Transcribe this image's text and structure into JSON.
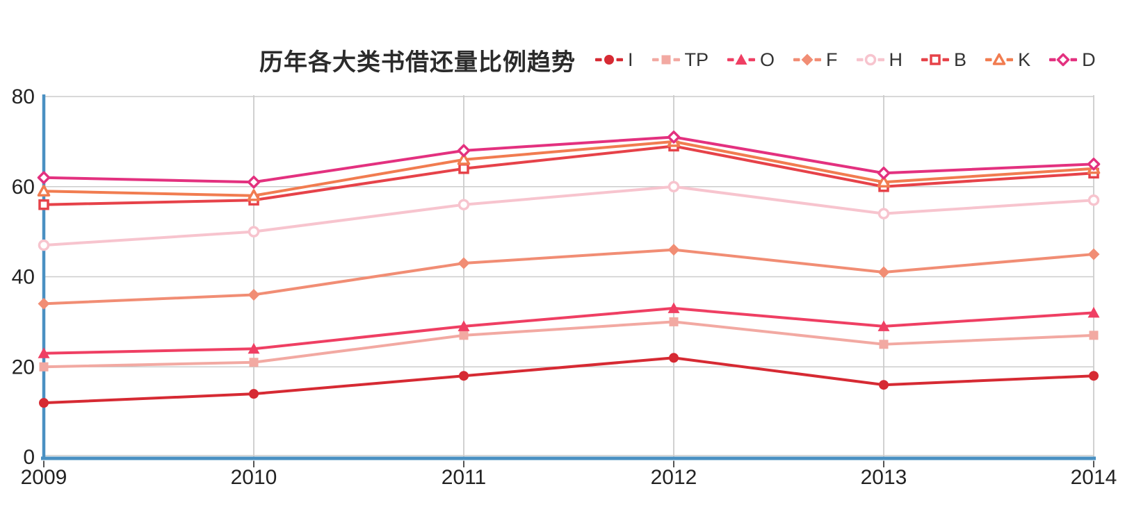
{
  "title": "历年各大类书借还量比例趋势",
  "colors": {
    "axis_blue": "#4a90c2",
    "gridline": "#cccccc",
    "tick": "#555555",
    "label_text": "#222222",
    "title_text": "#2b2b2b"
  },
  "chart_data": {
    "type": "line",
    "title": "历年各大类书借还量比例趋势",
    "x": [
      "2009",
      "2010",
      "2011",
      "2012",
      "2013",
      "2014"
    ],
    "ylim": [
      0,
      80
    ],
    "yticks": [
      0,
      20,
      40,
      60,
      80
    ],
    "grid": true,
    "legend_position": "top-right-of-title",
    "series": [
      {
        "name": "I",
        "color": "#d62a33",
        "marker": "circle",
        "marker_fill": "solid",
        "values": [
          12,
          14,
          18,
          22,
          16,
          18
        ]
      },
      {
        "name": "TP",
        "color": "#f2a9a2",
        "marker": "square",
        "marker_fill": "solid",
        "values": [
          20,
          21,
          27,
          30,
          25,
          27
        ]
      },
      {
        "name": "O",
        "color": "#ef3f63",
        "marker": "triangle",
        "marker_fill": "solid",
        "values": [
          23,
          24,
          29,
          33,
          29,
          32
        ]
      },
      {
        "name": "F",
        "color": "#f18d74",
        "marker": "diamond",
        "marker_fill": "solid",
        "values": [
          34,
          36,
          43,
          46,
          41,
          45
        ]
      },
      {
        "name": "H",
        "color": "#f7c4ce",
        "marker": "circle",
        "marker_fill": "open",
        "values": [
          47,
          50,
          56,
          60,
          54,
          57
        ]
      },
      {
        "name": "B",
        "color": "#e64249",
        "marker": "square",
        "marker_fill": "open",
        "values": [
          56,
          57,
          64,
          69,
          60,
          63
        ]
      },
      {
        "name": "K",
        "color": "#f17c50",
        "marker": "triangle",
        "marker_fill": "open",
        "values": [
          59,
          58,
          66,
          70,
          61,
          64
        ]
      },
      {
        "name": "D",
        "color": "#e3317f",
        "marker": "diamond",
        "marker_fill": "open",
        "values": [
          62,
          61,
          68,
          71,
          63,
          65
        ]
      }
    ]
  }
}
